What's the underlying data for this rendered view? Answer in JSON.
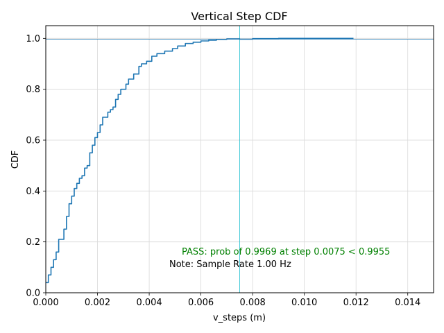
{
  "chart_data": {
    "type": "line",
    "title": "Vertical Step CDF",
    "xlabel": "v_steps (m)",
    "ylabel": "CDF",
    "xlim": [
      0,
      0.015
    ],
    "ylim": [
      0,
      1.05
    ],
    "x_ticks": [
      0,
      0.002,
      0.004,
      0.006,
      0.008,
      0.01,
      0.012,
      0.014
    ],
    "x_tick_labels": [
      "0.000",
      "0.002",
      "0.004",
      "0.006",
      "0.008",
      "0.010",
      "0.012",
      "0.014"
    ],
    "y_ticks": [
      0,
      0.2,
      0.4,
      0.6,
      0.8,
      1.0
    ],
    "y_tick_labels": [
      "0.0",
      "0.2",
      "0.4",
      "0.6",
      "0.8",
      "1.0"
    ],
    "grid": true,
    "series": [
      {
        "color": "#1f77b4",
        "x": [
          0,
          0.0001,
          0.0002,
          0.0003,
          0.0003,
          0.0004,
          0.0005,
          0.0005,
          0.0007,
          0.0007,
          0.0008,
          0.0008,
          0.0009,
          0.001,
          0.0011,
          0.0012,
          0.0012,
          0.0013,
          0.0014,
          0.0015,
          0.0015,
          0.0016,
          0.0016,
          0.0017,
          0.0017,
          0.0018,
          0.0019,
          0.002,
          0.0021,
          0.0022,
          0.0022,
          0.0024,
          0.0024,
          0.0025,
          0.0025,
          0.0026,
          0.0027,
          0.0027,
          0.0028,
          0.0029,
          0.0031,
          0.0032,
          0.0032,
          0.0034,
          0.0034,
          0.0036,
          0.0036,
          0.0037,
          0.0039,
          0.0039,
          0.0041,
          0.0041,
          0.0043,
          0.0043,
          0.0046,
          0.0049,
          0.0051,
          0.0054,
          0.0057,
          0.006,
          0.0063,
          0.0066,
          0.007,
          0.0075,
          0.008,
          0.009,
          0.0119
        ],
        "y": [
          0.04,
          0.07,
          0.1,
          0.12,
          0.13,
          0.16,
          0.2,
          0.21,
          0.25,
          0.25,
          0.28,
          0.3,
          0.35,
          0.38,
          0.41,
          0.42,
          0.43,
          0.45,
          0.46,
          0.49,
          0.49,
          0.5,
          0.5,
          0.55,
          0.55,
          0.58,
          0.61,
          0.63,
          0.66,
          0.67,
          0.69,
          0.7,
          0.71,
          0.72,
          0.72,
          0.73,
          0.75,
          0.76,
          0.78,
          0.8,
          0.82,
          0.83,
          0.84,
          0.85,
          0.86,
          0.88,
          0.89,
          0.9,
          0.9,
          0.91,
          0.92,
          0.93,
          0.94,
          0.94,
          0.95,
          0.96,
          0.97,
          0.98,
          0.985,
          0.99,
          0.993,
          0.996,
          0.998,
          0.9969,
          0.999,
          1.0,
          1.0
        ]
      }
    ],
    "reference_lines": [
      {
        "orientation": "horizontal",
        "value": 0.9969,
        "color": "#1f77b4"
      },
      {
        "orientation": "vertical",
        "value": 0.0075,
        "color": "#17becf"
      }
    ],
    "annotations": [
      {
        "text": "PASS: prob of 0.9969 at step 0.0075 < 0.9955",
        "color": "#008000"
      },
      {
        "text": "Note: Sample Rate 1.00 Hz",
        "color": "#000000"
      }
    ]
  }
}
